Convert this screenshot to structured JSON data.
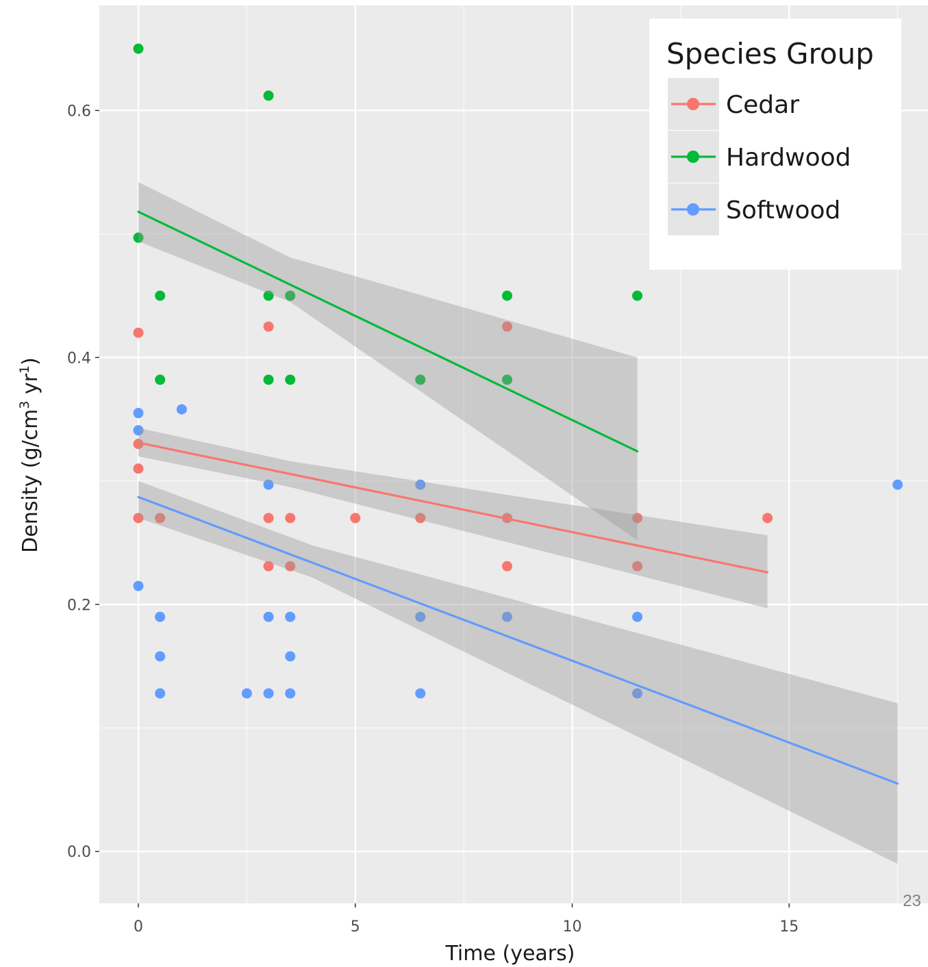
{
  "chart_data": {
    "type": "scatter",
    "title": "",
    "xlabel": "Time (years)",
    "ylabel_parts": [
      "Density (g/cm",
      "3",
      " yr",
      "1",
      ")"
    ],
    "xlim": [
      -0.9,
      18.2
    ],
    "ylim": [
      -0.042,
      0.685
    ],
    "x_ticks": [
      0,
      5,
      10,
      15
    ],
    "x_tick_labels": [
      "0",
      "5",
      "10",
      "15"
    ],
    "y_ticks": [
      0.0,
      0.2,
      0.4,
      0.6
    ],
    "y_tick_labels": [
      "0.0",
      "0.2",
      "0.4",
      "0.6"
    ],
    "grid": true,
    "legend": {
      "title": "Species Group",
      "position": "top-right"
    },
    "series": [
      {
        "name": "Cedar",
        "color": "#F8766D",
        "points": [
          [
            0,
            0.42
          ],
          [
            0,
            0.33
          ],
          [
            0,
            0.31
          ],
          [
            0,
            0.27
          ],
          [
            0.5,
            0.27
          ],
          [
            3,
            0.425
          ],
          [
            3,
            0.27
          ],
          [
            3,
            0.231
          ],
          [
            3.5,
            0.27
          ],
          [
            3.5,
            0.231
          ],
          [
            5,
            0.27
          ],
          [
            6.5,
            0.27
          ],
          [
            8.5,
            0.425
          ],
          [
            8.5,
            0.27
          ],
          [
            8.5,
            0.231
          ],
          [
            11.5,
            0.27
          ],
          [
            11.5,
            0.231
          ],
          [
            14.5,
            0.27
          ]
        ],
        "fit": {
          "x": [
            0,
            14.5
          ],
          "y": [
            0.331,
            0.226
          ]
        },
        "band": {
          "x": [
            0,
            3.5,
            14.5
          ],
          "lower": [
            0.32,
            0.295,
            0.197
          ],
          "upper": [
            0.343,
            0.316,
            0.256
          ]
        }
      },
      {
        "name": "Hardwood",
        "color": "#00BA38",
        "points": [
          [
            0,
            0.65
          ],
          [
            0,
            0.497
          ],
          [
            0.5,
            0.45
          ],
          [
            0.5,
            0.382
          ],
          [
            3,
            0.612
          ],
          [
            3,
            0.45
          ],
          [
            3,
            0.382
          ],
          [
            3.5,
            0.45
          ],
          [
            3.5,
            0.382
          ],
          [
            6.5,
            0.382
          ],
          [
            8.5,
            0.45
          ],
          [
            8.5,
            0.382
          ],
          [
            11.5,
            0.45
          ]
        ],
        "fit": {
          "x": [
            0,
            11.5
          ],
          "y": [
            0.518,
            0.324
          ]
        },
        "band": {
          "x": [
            0,
            3.5,
            11.5
          ],
          "lower": [
            0.494,
            0.445,
            0.252
          ],
          "upper": [
            0.542,
            0.481,
            0.4
          ]
        }
      },
      {
        "name": "Softwood",
        "color": "#619CFF",
        "points": [
          [
            0,
            0.355
          ],
          [
            0,
            0.341
          ],
          [
            0,
            0.215
          ],
          [
            0.5,
            0.19
          ],
          [
            0.5,
            0.158
          ],
          [
            0.5,
            0.128
          ],
          [
            1,
            0.358
          ],
          [
            2.5,
            0.128
          ],
          [
            3,
            0.297
          ],
          [
            3,
            0.19
          ],
          [
            3,
            0.128
          ],
          [
            3.5,
            0.19
          ],
          [
            3.5,
            0.158
          ],
          [
            3.5,
            0.128
          ],
          [
            6.5,
            0.297
          ],
          [
            6.5,
            0.19
          ],
          [
            6.5,
            0.128
          ],
          [
            8.5,
            0.19
          ],
          [
            11.5,
            0.19
          ],
          [
            11.5,
            0.128
          ],
          [
            17.5,
            0.297
          ]
        ],
        "fit": {
          "x": [
            0,
            17.5
          ],
          "y": [
            0.287,
            0.055
          ]
        },
        "band": {
          "x": [
            0,
            4,
            17.5
          ],
          "lower": [
            0.27,
            0.222,
            -0.01
          ],
          "upper": [
            0.3,
            0.248,
            0.12
          ]
        }
      }
    ],
    "fit_band_color": "#999999"
  },
  "slide_number": "23"
}
